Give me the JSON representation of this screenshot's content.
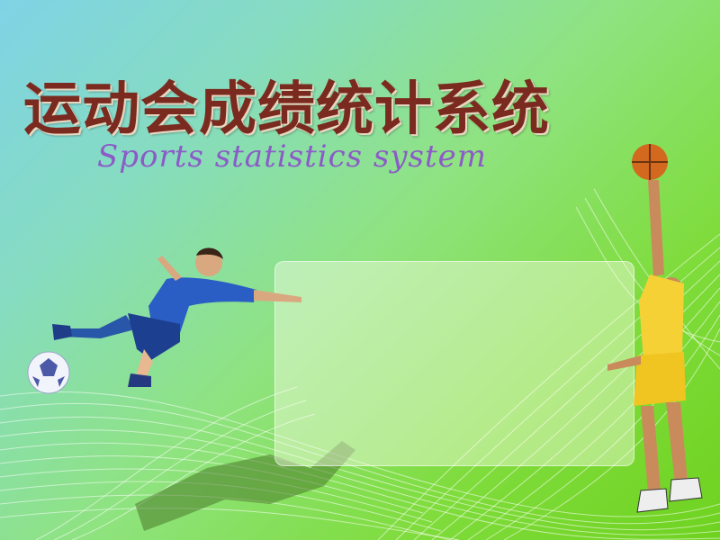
{
  "title": {
    "cn": "运动会成绩统计系统",
    "en": "Sports statistics system"
  },
  "colors": {
    "title_cn": "#7a2a1f",
    "title_en": "#8b5bc7",
    "panel": "#f4ffe0",
    "bg_top_left": "#7fd3e6",
    "bg_bottom_right": "#6fd21f"
  },
  "icons": {
    "soccer": "soccer-player-icon",
    "basketball": "basketball-player-icon",
    "ball": "soccer-ball-icon"
  }
}
